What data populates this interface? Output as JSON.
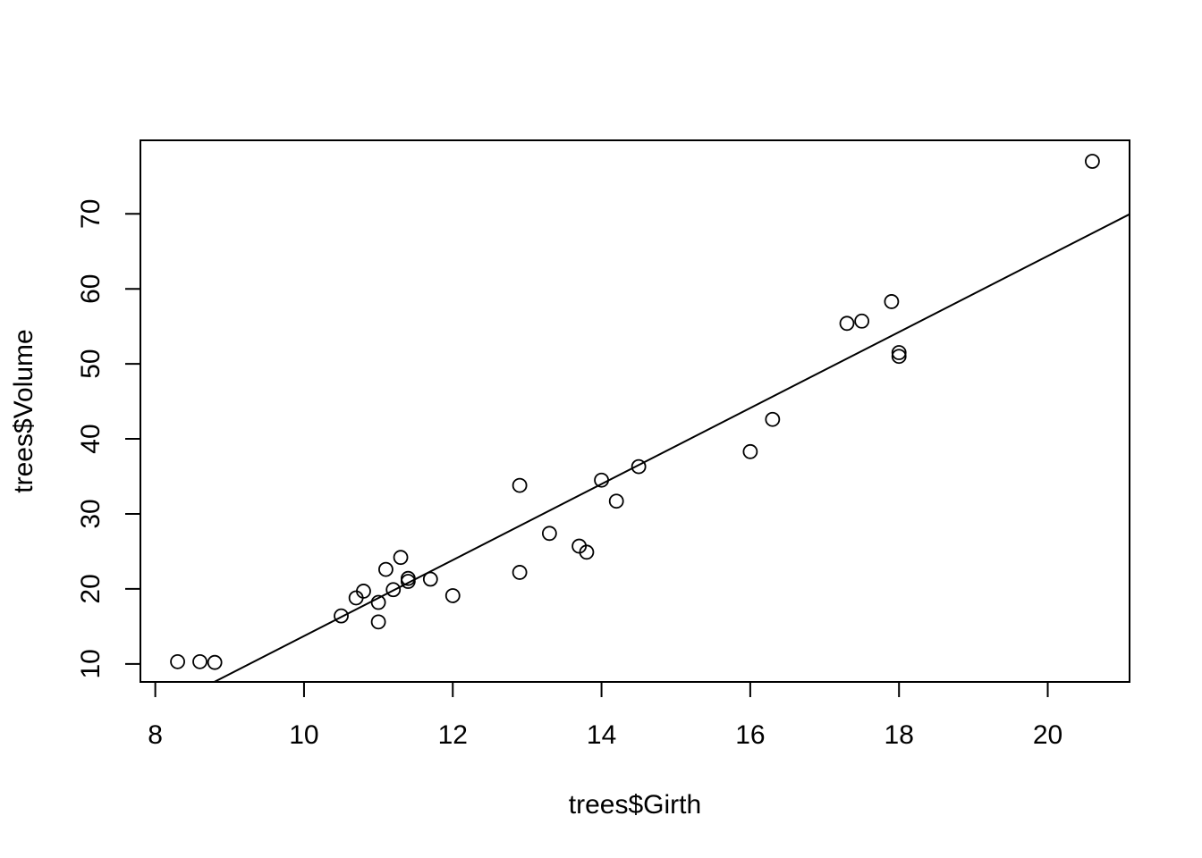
{
  "chart_data": {
    "type": "scatter",
    "title": "",
    "xlabel": "trees$Girth",
    "ylabel": "trees$Volume",
    "xlim": [
      7.8,
      21.1
    ],
    "ylim": [
      7.6,
      79.8
    ],
    "x_ticks": [
      8,
      10,
      12,
      14,
      16,
      18,
      20
    ],
    "y_ticks": [
      10,
      20,
      30,
      40,
      50,
      60,
      70
    ],
    "x_tick_labels": [
      "8",
      "10",
      "12",
      "14",
      "16",
      "18",
      "20"
    ],
    "y_tick_labels": [
      "10",
      "20",
      "30",
      "40",
      "50",
      "60",
      "70"
    ],
    "grid": false,
    "legend": "none",
    "marker": "open-circle",
    "color": "#000000",
    "series": [
      {
        "x": [
          8.3,
          8.6,
          8.8,
          10.5,
          10.7,
          10.8,
          11.0,
          11.0,
          11.1,
          11.2,
          11.3,
          11.4,
          11.4,
          11.7,
          12.0,
          12.9,
          12.9,
          13.3,
          13.7,
          13.8,
          14.0,
          14.2,
          14.5,
          16.0,
          16.3,
          17.3,
          17.5,
          17.9,
          18.0,
          18.0,
          20.6
        ],
        "y": [
          10.3,
          10.3,
          10.2,
          16.4,
          18.8,
          19.7,
          15.6,
          18.2,
          22.6,
          19.9,
          24.2,
          21.0,
          21.4,
          21.3,
          19.1,
          22.2,
          33.8,
          27.4,
          25.7,
          24.9,
          34.5,
          31.7,
          36.3,
          38.3,
          42.6,
          55.4,
          55.7,
          58.3,
          51.5,
          51.0,
          77.0
        ]
      }
    ],
    "fit_line": {
      "intercept": -36.9435,
      "slope": 5.0659
    }
  }
}
